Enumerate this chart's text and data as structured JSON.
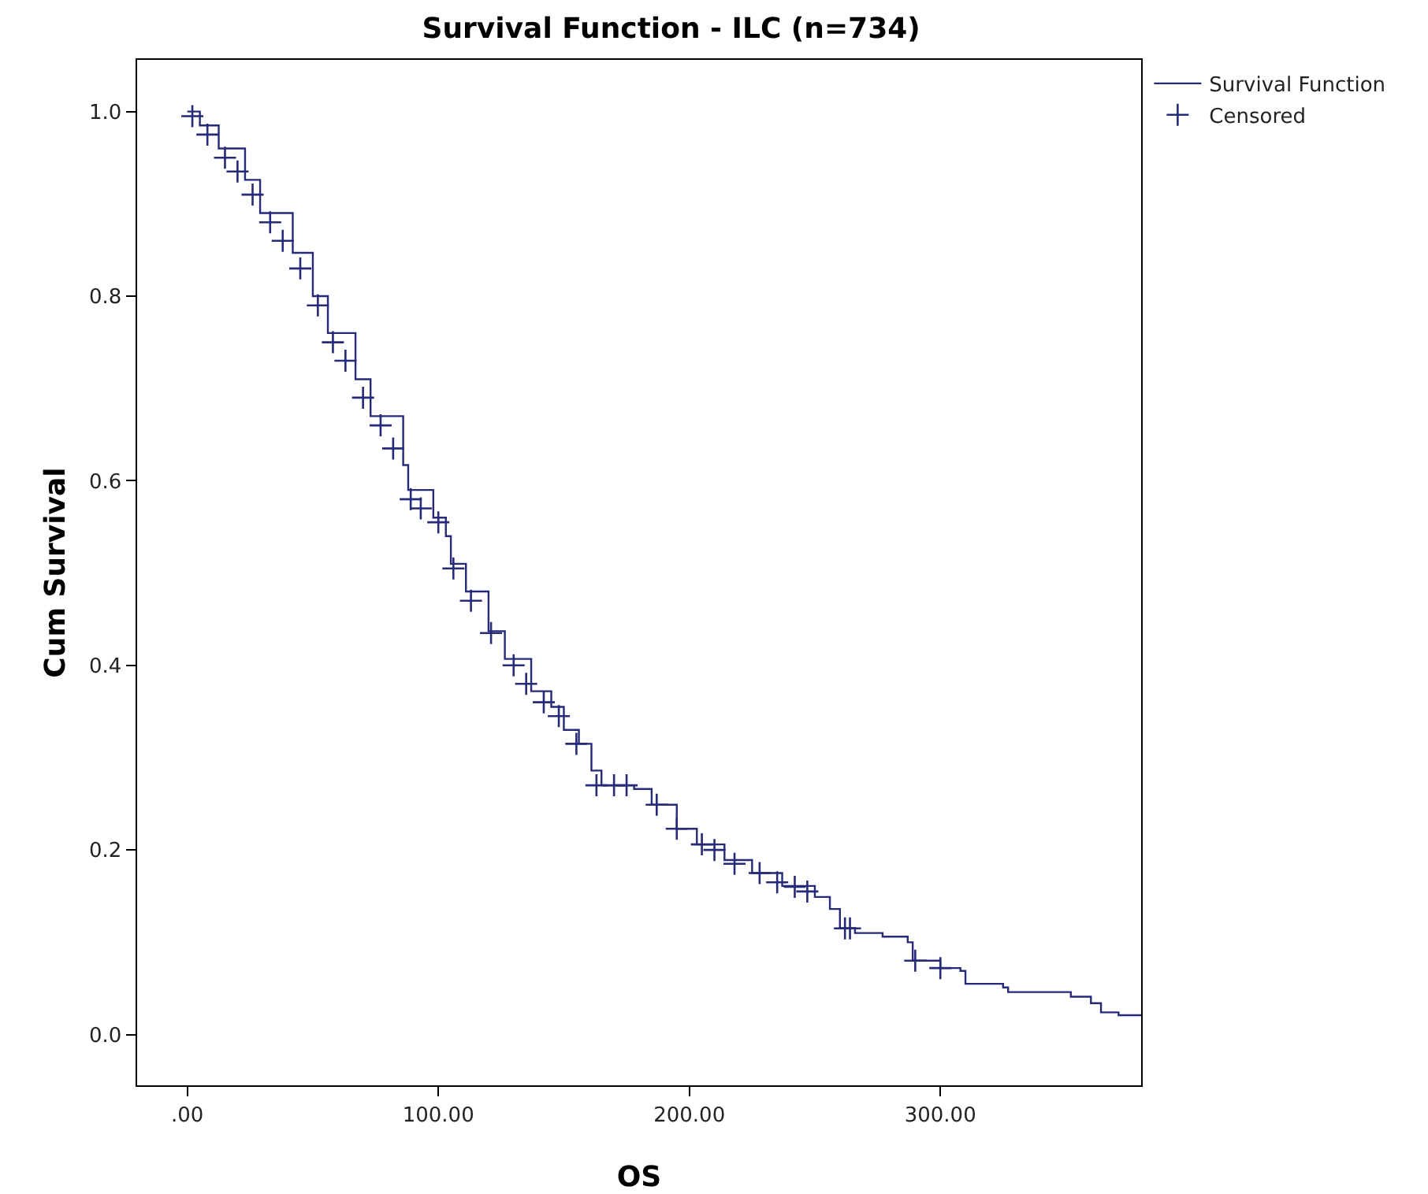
{
  "chart_data": {
    "type": "step",
    "title": "Survival Function - ILC (n=734)",
    "xlabel": "OS",
    "ylabel": "Cum Survival",
    "xlim": [
      -20,
      380
    ],
    "xticks": [
      {
        "value": 0,
        "label": ".00"
      },
      {
        "value": 100,
        "label": "100.00"
      },
      {
        "value": 200,
        "label": "200.00"
      },
      {
        "value": 300,
        "label": "300.00"
      }
    ],
    "ylim": [
      -0.055,
      1.056
    ],
    "yticks": [
      {
        "value": 0,
        "label": "0.0"
      },
      {
        "value": 0.2,
        "label": "0.2"
      },
      {
        "value": 0.4,
        "label": "0.4"
      },
      {
        "value": 0.6,
        "label": "0.6"
      },
      {
        "value": 0.8,
        "label": "0.8"
      },
      {
        "value": 1,
        "label": "1.0"
      }
    ],
    "grid": false,
    "legend": "top right",
    "marker": "none",
    "line_style": "solid",
    "series": [
      {
        "name": "Survival Function",
        "color": "#262a78",
        "x": [
          0,
          5,
          12.5,
          23,
          29,
          42,
          50,
          56,
          67,
          73,
          86,
          88,
          98,
          103,
          105,
          111,
          120,
          126.5,
          137,
          145,
          150,
          156,
          161,
          165,
          178,
          185,
          195,
          203,
          214,
          225,
          237,
          250,
          256,
          260,
          266,
          277,
          287,
          289,
          300,
          308,
          310,
          325,
          327,
          346,
          352,
          360,
          364,
          371,
          380
        ],
        "values": [
          1.0,
          0.985,
          0.96,
          0.926,
          0.89,
          0.847,
          0.8,
          0.76,
          0.71,
          0.67,
          0.617,
          0.59,
          0.56,
          0.54,
          0.51,
          0.48,
          0.437,
          0.407,
          0.372,
          0.355,
          0.33,
          0.315,
          0.286,
          0.27,
          0.266,
          0.249,
          0.223,
          0.206,
          0.189,
          0.175,
          0.161,
          0.149,
          0.136,
          0.115,
          0.11,
          0.106,
          0.1,
          0.08,
          0.072,
          0.069,
          0.055,
          0.051,
          0.046,
          0.046,
          0.041,
          0.034,
          0.024,
          0.021,
          0.021
        ]
      },
      {
        "name": "Censored",
        "type": "scatter",
        "marker": "cross",
        "color": "#262a78",
        "x": [
          2,
          8,
          15,
          20,
          26,
          33,
          38,
          45,
          52,
          58,
          63,
          70,
          77,
          82,
          89,
          93,
          100,
          106,
          113,
          121,
          130,
          135,
          142,
          148,
          155,
          163,
          170,
          175,
          187,
          195,
          205,
          210,
          218,
          228,
          235,
          242,
          247,
          262,
          264,
          290,
          300
        ],
        "values": [
          0.995,
          0.975,
          0.95,
          0.935,
          0.91,
          0.88,
          0.86,
          0.83,
          0.79,
          0.75,
          0.73,
          0.69,
          0.66,
          0.635,
          0.58,
          0.57,
          0.555,
          0.505,
          0.47,
          0.435,
          0.4,
          0.38,
          0.36,
          0.345,
          0.315,
          0.27,
          0.27,
          0.27,
          0.249,
          0.223,
          0.206,
          0.2,
          0.185,
          0.175,
          0.165,
          0.16,
          0.155,
          0.115,
          0.115,
          0.08,
          0.072
        ]
      }
    ]
  }
}
